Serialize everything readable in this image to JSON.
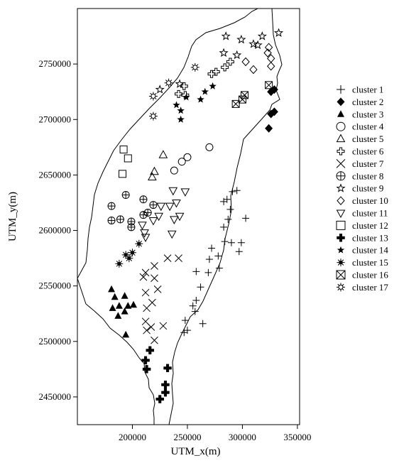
{
  "chart_data": {
    "type": "scatter",
    "xlabel": "UTM_x(m)",
    "ylabel": "UTM_y(m)",
    "xlim": [
      150000,
      352000
    ],
    "ylim": [
      2425000,
      2800000
    ],
    "x_ticks": [
      200000,
      250000,
      300000,
      350000
    ],
    "y_ticks": [
      2450000,
      2500000,
      2550000,
      2600000,
      2650000,
      2700000,
      2750000
    ],
    "x_tick_labels": [
      "200000",
      "250000",
      "300000",
      "350000"
    ],
    "y_tick_labels": [
      "2450000",
      "2500000",
      "2550000",
      "2600000",
      "2650000",
      "2700000",
      "2750000"
    ],
    "legend_position": "right",
    "series": [
      {
        "name": "cluster  1",
        "marker": "plus",
        "points": [
          [
            283000,
            2626000
          ],
          [
            291000,
            2635000
          ],
          [
            295000,
            2636000
          ],
          [
            286000,
            2628000
          ],
          [
            289000,
            2619000
          ],
          [
            287000,
            2610000
          ],
          [
            283000,
            2603000
          ],
          [
            303000,
            2611000
          ],
          [
            284000,
            2590000
          ],
          [
            290000,
            2589000
          ],
          [
            299000,
            2589000
          ],
          [
            297000,
            2581000
          ],
          [
            272000,
            2584000
          ],
          [
            270000,
            2574000
          ],
          [
            278000,
            2577000
          ],
          [
            279000,
            2566000
          ],
          [
            258000,
            2563000
          ],
          [
            269000,
            2562000
          ],
          [
            262000,
            2549000
          ],
          [
            258000,
            2537000
          ],
          [
            255000,
            2532000
          ],
          [
            257000,
            2527000
          ],
          [
            248000,
            2519000
          ],
          [
            250000,
            2510000
          ],
          [
            247000,
            2508000
          ],
          [
            264000,
            2516000
          ]
        ]
      },
      {
        "name": "cluster  2",
        "marker": "diamond-filled",
        "points": [
          [
            326000,
            2725000
          ],
          [
            329000,
            2727000
          ],
          [
            326000,
            2705000
          ],
          [
            329000,
            2707000
          ],
          [
            324000,
            2692000
          ]
        ]
      },
      {
        "name": "cluster  3",
        "marker": "triangle-filled",
        "points": [
          [
            181000,
            2547000
          ],
          [
            184000,
            2540000
          ],
          [
            193000,
            2541000
          ],
          [
            182000,
            2530000
          ],
          [
            188000,
            2532000
          ],
          [
            196000,
            2532000
          ],
          [
            201000,
            2533000
          ],
          [
            193000,
            2527000
          ],
          [
            187000,
            2523000
          ],
          [
            194000,
            2506000
          ]
        ]
      },
      {
        "name": "cluster  4",
        "marker": "circle",
        "points": [
          [
            270000,
            2675000
          ],
          [
            250000,
            2666000
          ],
          [
            245000,
            2662000
          ],
          [
            238000,
            2654000
          ]
        ]
      },
      {
        "name": "cluster  5",
        "marker": "triangle",
        "points": [
          [
            228000,
            2668000
          ],
          [
            220000,
            2653000
          ],
          [
            218000,
            2648000
          ]
        ]
      },
      {
        "name": "cluster  6",
        "marker": "plus-bold",
        "points": [
          [
            289000,
            2752000
          ],
          [
            284000,
            2747000
          ],
          [
            276000,
            2743000
          ],
          [
            272000,
            2741000
          ],
          [
            247000,
            2730000
          ],
          [
            242000,
            2723000
          ],
          [
            248000,
            2722000
          ]
        ]
      },
      {
        "name": "cluster  7",
        "marker": "x",
        "points": [
          [
            232000,
            2575000
          ],
          [
            242000,
            2575000
          ],
          [
            220000,
            2568000
          ],
          [
            212000,
            2562000
          ],
          [
            210000,
            2558000
          ],
          [
            220000,
            2557000
          ],
          [
            223000,
            2547000
          ],
          [
            212000,
            2544000
          ],
          [
            213000,
            2530000
          ],
          [
            218000,
            2535000
          ],
          [
            212000,
            2518000
          ],
          [
            217000,
            2513000
          ],
          [
            213000,
            2510000
          ],
          [
            220000,
            2501000
          ],
          [
            228000,
            2514000
          ]
        ]
      },
      {
        "name": "cluster  8",
        "marker": "circle-plus",
        "points": [
          [
            194000,
            2632000
          ],
          [
            210000,
            2628000
          ],
          [
            181000,
            2622000
          ],
          [
            219000,
            2623000
          ],
          [
            181000,
            2609000
          ],
          [
            189000,
            2610000
          ],
          [
            199000,
            2608000
          ],
          [
            199000,
            2603000
          ],
          [
            210000,
            2614000
          ],
          [
            214000,
            2616000
          ]
        ]
      },
      {
        "name": "cluster  9",
        "marker": "star",
        "points": [
          [
            285000,
            2775000
          ],
          [
            299000,
            2772000
          ],
          [
            318000,
            2775000
          ],
          [
            310000,
            2768000
          ],
          [
            333000,
            2778000
          ],
          [
            314000,
            2767000
          ],
          [
            283000,
            2760000
          ],
          [
            295000,
            2758000
          ],
          [
            243000,
            2732000
          ],
          [
            225000,
            2727000
          ]
        ]
      },
      {
        "name": "cluster 10",
        "marker": "diamond",
        "points": [
          [
            323000,
            2760000
          ],
          [
            324000,
            2765000
          ],
          [
            326000,
            2755000
          ],
          [
            326000,
            2748000
          ],
          [
            310000,
            2745000
          ],
          [
            303000,
            2752000
          ]
        ]
      },
      {
        "name": "cluster 11",
        "marker": "triangle-down",
        "points": [
          [
            237000,
            2636000
          ],
          [
            248000,
            2635000
          ],
          [
            226000,
            2622000
          ],
          [
            234000,
            2622000
          ],
          [
            240000,
            2625000
          ],
          [
            224000,
            2613000
          ],
          [
            243000,
            2613000
          ],
          [
            238000,
            2610000
          ],
          [
            219000,
            2609000
          ],
          [
            209000,
            2605000
          ],
          [
            211000,
            2598000
          ],
          [
            236000,
            2597000
          ],
          [
            212000,
            2594000
          ]
        ]
      },
      {
        "name": "cluster 12",
        "marker": "square",
        "points": [
          [
            192000,
            2673000
          ],
          [
            196000,
            2665000
          ],
          [
            191000,
            2651000
          ]
        ]
      },
      {
        "name": "cluster 13",
        "marker": "plus-filled",
        "points": [
          [
            216000,
            2492000
          ],
          [
            212000,
            2483000
          ],
          [
            213000,
            2475000
          ],
          [
            232000,
            2476000
          ],
          [
            230000,
            2461000
          ],
          [
            230000,
            2454000
          ],
          [
            225000,
            2448000
          ]
        ]
      },
      {
        "name": "cluster 14",
        "marker": "star-filled",
        "points": [
          [
            273000,
            2730000
          ],
          [
            266000,
            2725000
          ],
          [
            262000,
            2718000
          ],
          [
            249000,
            2720000
          ],
          [
            240000,
            2713000
          ],
          [
            244000,
            2708000
          ],
          [
            244000,
            2700000
          ]
        ]
      },
      {
        "name": "cluster 15",
        "marker": "asterisk-star",
        "points": [
          [
            206000,
            2588000
          ],
          [
            200000,
            2580000
          ],
          [
            197000,
            2575000
          ],
          [
            194000,
            2578000
          ],
          [
            188000,
            2570000
          ]
        ]
      },
      {
        "name": "cluster 16",
        "marker": "square-x",
        "points": [
          [
            324000,
            2731000
          ],
          [
            302000,
            2722000
          ],
          [
            300000,
            2718000
          ],
          [
            294000,
            2714000
          ]
        ]
      },
      {
        "name": "cluster 17",
        "marker": "sun",
        "points": [
          [
            257000,
            2747000
          ],
          [
            233000,
            2733000
          ],
          [
            219000,
            2721000
          ],
          [
            219000,
            2703000
          ]
        ]
      }
    ],
    "marker_color": "#000000"
  }
}
